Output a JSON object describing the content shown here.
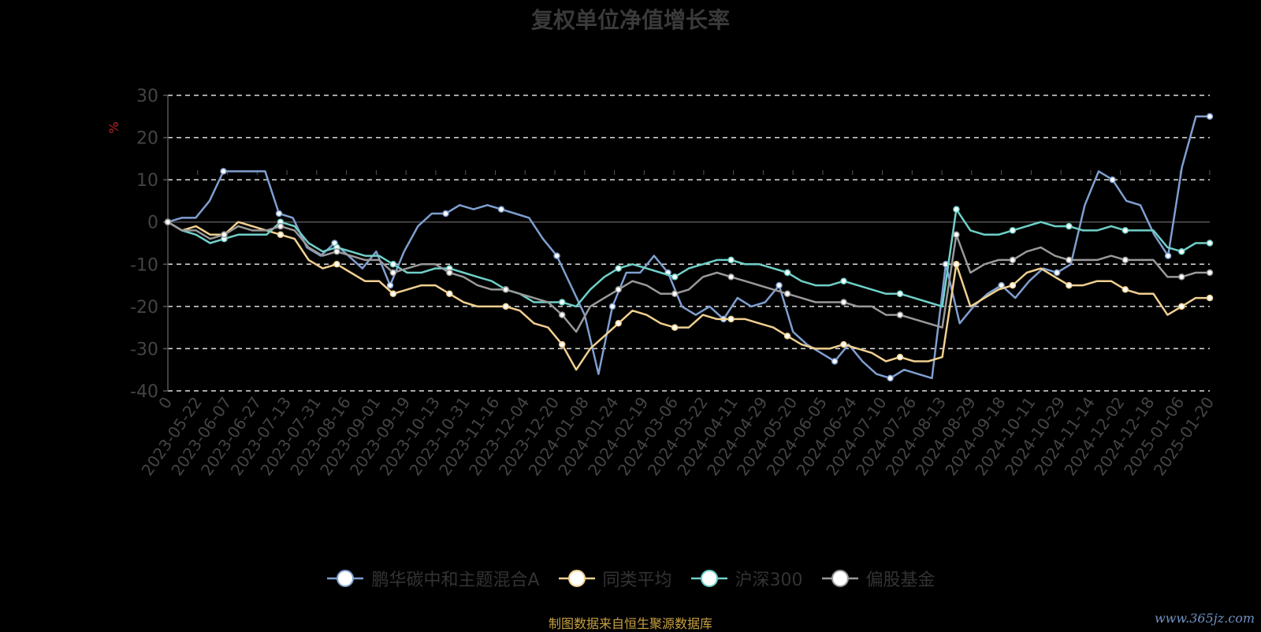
{
  "watermark": "www.365jz.com",
  "source_note": "制图数据来自恒生聚源数据库",
  "chart_data": {
    "type": "line",
    "title": "复权单位净值增长率",
    "ylabel": "%",
    "ylim": [
      -40,
      30
    ],
    "yticks": [
      30,
      20,
      10,
      0,
      -10,
      -20,
      -30,
      -40
    ],
    "grid": true,
    "legend_position": "bottom",
    "x_tick_labels": [
      "0",
      "2023-05-22",
      "2023-06-07",
      "2023-06-27",
      "2023-07-13",
      "2023-07-31",
      "2023-08-16",
      "2023-09-01",
      "2023-09-19",
      "2023-10-13",
      "2023-10-31",
      "2023-11-16",
      "2023-12-04",
      "2023-12-20",
      "2024-01-08",
      "2024-01-24",
      "2024-02-19",
      "2024-03-06",
      "2024-03-22",
      "2024-04-11",
      "2024-04-29",
      "2024-05-20",
      "2024-06-05",
      "2024-06-24",
      "2024-07-10",
      "2024-07-26",
      "2024-08-13",
      "2024-08-29",
      "2024-09-18",
      "2024-10-11",
      "2024-10-29",
      "2024-11-14",
      "2024-12-02",
      "2024-12-18",
      "2025-01-06",
      "2025-01-20"
    ],
    "series": [
      {
        "name": "鹏华碳中和主题混合A",
        "color": "#7f9fd0",
        "values": [
          0,
          1,
          1,
          5,
          12,
          12,
          12,
          12,
          2,
          1,
          -6,
          -8,
          -5,
          -8,
          -11,
          -7,
          -15,
          -7,
          -1,
          2,
          2,
          4,
          3,
          4,
          3,
          2,
          1,
          -4,
          -8,
          -15,
          -22,
          -36,
          -20,
          -12,
          -12,
          -8,
          -12,
          -20,
          -22,
          -20,
          -23,
          -18,
          -20,
          -19,
          -15,
          -26,
          -29,
          -31,
          -33,
          -29,
          -33,
          -36,
          -37,
          -35,
          -36,
          -37,
          -10,
          -24,
          -20,
          -17,
          -15,
          -18,
          -14,
          -11,
          -12,
          -10,
          4,
          12,
          10,
          5,
          4,
          -3,
          -8,
          13,
          25,
          25
        ]
      },
      {
        "name": "同类平均",
        "color": "#f0d090",
        "values": [
          0,
          -2,
          -1,
          -3,
          -3,
          0,
          -1,
          -2,
          -3,
          -4,
          -9,
          -11,
          -10,
          -12,
          -14,
          -14,
          -17,
          -16,
          -15,
          -15,
          -17,
          -19,
          -20,
          -20,
          -20,
          -21,
          -24,
          -25,
          -29,
          -35,
          -30,
          -27,
          -24,
          -21,
          -22,
          -24,
          -25,
          -25,
          -22,
          -23,
          -23,
          -23,
          -24,
          -25,
          -27,
          -29,
          -30,
          -30,
          -29,
          -30,
          -31,
          -33,
          -32,
          -33,
          -33,
          -32,
          -10,
          -20,
          -18,
          -16,
          -15,
          -12,
          -11,
          -13,
          -15,
          -15,
          -14,
          -14,
          -16,
          -17,
          -17,
          -22,
          -20,
          -18,
          -18
        ]
      },
      {
        "name": "沪深300",
        "color": "#6fd0c8",
        "values": [
          0,
          -2,
          -3,
          -5,
          -4,
          -3,
          -3,
          -3,
          0,
          -1,
          -5,
          -7,
          -6,
          -7,
          -8,
          -8,
          -10,
          -12,
          -12,
          -11,
          -11,
          -12,
          -13,
          -14,
          -16,
          -17,
          -19,
          -19,
          -19,
          -20,
          -16,
          -13,
          -11,
          -10,
          -11,
          -12,
          -13,
          -11,
          -10,
          -9,
          -9,
          -10,
          -10,
          -11,
          -12,
          -14,
          -15,
          -15,
          -14,
          -15,
          -16,
          -17,
          -17,
          -18,
          -19,
          -20,
          3,
          -2,
          -3,
          -3,
          -2,
          -1,
          0,
          -1,
          -1,
          -2,
          -2,
          -1,
          -2,
          -2,
          -2,
          -6,
          -7,
          -5,
          -5
        ]
      },
      {
        "name": "偏股基金",
        "color": "#999999",
        "values": [
          0,
          -2,
          -2,
          -4,
          -3,
          -1,
          -2,
          -2,
          -1,
          -2,
          -6,
          -8,
          -7,
          -8,
          -9,
          -9,
          -12,
          -11,
          -10,
          -10,
          -12,
          -13,
          -15,
          -16,
          -16,
          -17,
          -18,
          -19,
          -22,
          -26,
          -20,
          -18,
          -16,
          -14,
          -15,
          -17,
          -17,
          -16,
          -13,
          -12,
          -13,
          -14,
          -15,
          -16,
          -17,
          -18,
          -19,
          -19,
          -19,
          -20,
          -20,
          -22,
          -22,
          -23,
          -24,
          -25,
          -3,
          -12,
          -10,
          -9,
          -9,
          -7,
          -6,
          -8,
          -9,
          -9,
          -9,
          -8,
          -9,
          -9,
          -9,
          -13,
          -13,
          -12,
          -12
        ]
      }
    ]
  }
}
